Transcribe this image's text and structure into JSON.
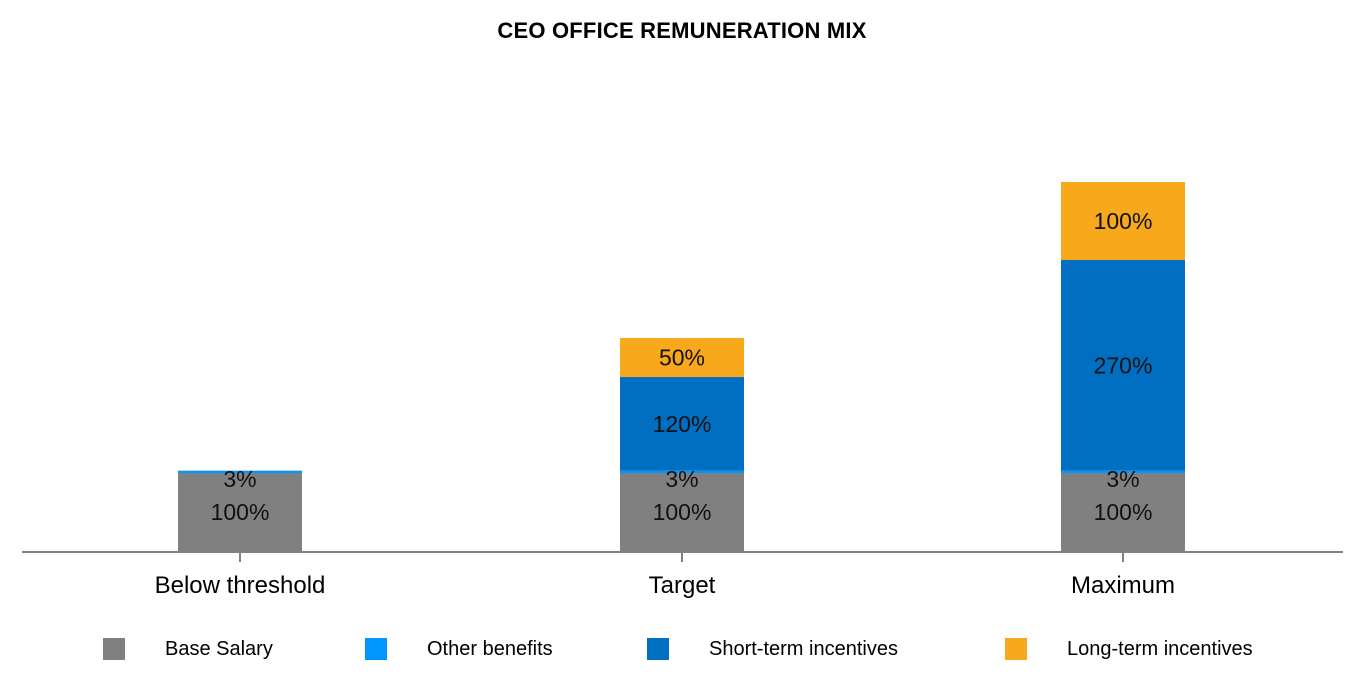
{
  "chart_data": {
    "type": "bar",
    "stacked": true,
    "title": "CEO OFFICE REMUNERATION MIX",
    "categories": [
      "Below threshold",
      "Target",
      "Maximum"
    ],
    "series": [
      {
        "name": "Base Salary",
        "color": "#808080",
        "values": [
          100,
          100,
          100
        ],
        "labels": [
          "100%",
          "100%",
          "100%"
        ]
      },
      {
        "name": "Other benefits",
        "color": "#0096FF",
        "values": [
          3,
          3,
          3
        ],
        "labels": [
          "3%",
          "3%",
          "3%"
        ]
      },
      {
        "name": "Short-term incentives",
        "color": "#006EC1",
        "values": [
          0,
          120,
          270
        ],
        "labels": [
          "",
          "120%",
          "270%"
        ]
      },
      {
        "name": "Long-term incentives",
        "color": "#F7A81B",
        "values": [
          0,
          50,
          100
        ],
        "labels": [
          "",
          "50%",
          "100%"
        ]
      }
    ],
    "xlabel": "",
    "ylabel": "",
    "ylim": [
      0,
      473
    ],
    "grid": false,
    "legend_position": "bottom"
  }
}
